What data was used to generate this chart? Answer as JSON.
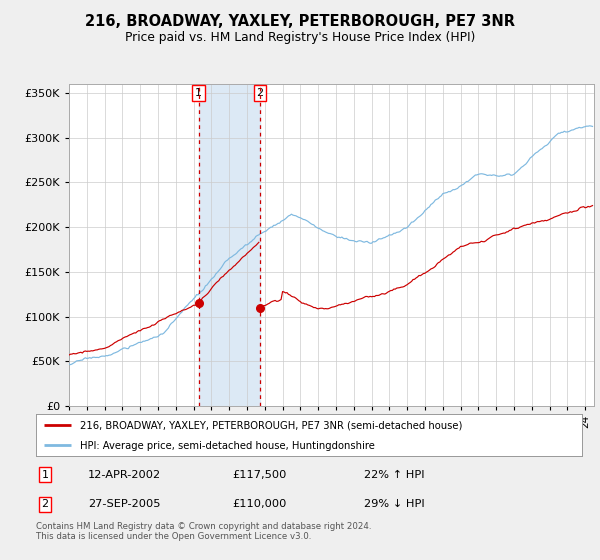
{
  "title": "216, BROADWAY, YAXLEY, PETERBOROUGH, PE7 3NR",
  "subtitle": "Price paid vs. HM Land Registry's House Price Index (HPI)",
  "legend_line1": "216, BROADWAY, YAXLEY, PETERBOROUGH, PE7 3NR (semi-detached house)",
  "legend_line2": "HPI: Average price, semi-detached house, Huntingdonshire",
  "transaction1_date": "12-APR-2002",
  "transaction1_price": 117500,
  "transaction1_pct": "22% ↑ HPI",
  "transaction2_date": "27-SEP-2005",
  "transaction2_price": 110000,
  "transaction2_pct": "29% ↓ HPI",
  "footnote": "Contains HM Land Registry data © Crown copyright and database right 2024.\nThis data is licensed under the Open Government Licence v3.0.",
  "ylim": [
    0,
    360000
  ],
  "yticks": [
    0,
    50000,
    100000,
    150000,
    200000,
    250000,
    300000,
    350000
  ],
  "hpi_color": "#7fb9e0",
  "price_color": "#cc0000",
  "bg_color": "#efefef",
  "plot_bg_color": "#ffffff",
  "shade_color": "#dce9f5",
  "transaction1_x": 2002.28,
  "transaction2_x": 2005.74,
  "grid_color": "#cccccc",
  "xstart": 1995,
  "xend": 2024.5
}
